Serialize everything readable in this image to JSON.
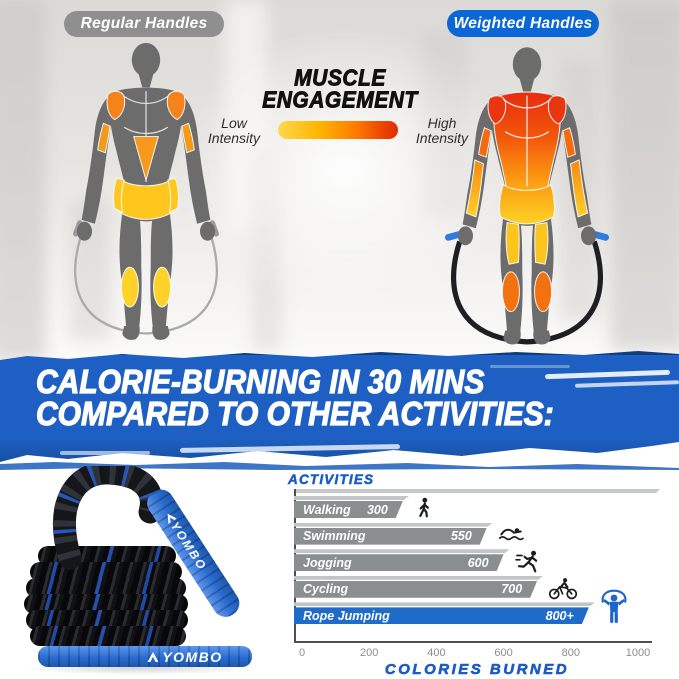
{
  "header": {
    "regular_pill_label": "Regular Handles",
    "weighted_pill_label": "Weighted Handles"
  },
  "muscle_engagement": {
    "title_line1": "MUSCLE",
    "title_line2": "ENGAGEMENT",
    "low_label_line1": "Low",
    "low_label_line2": "Intensity",
    "high_label_line1": "High",
    "high_label_line2": "Intensity"
  },
  "banner": {
    "line1": "CALORIE-BURNING IN 30 MINS",
    "line2": "COMPARED TO OTHER ACTIVITIES:"
  },
  "product": {
    "brand": "YOMBO"
  },
  "chart_data": {
    "type": "bar",
    "orientation": "horizontal",
    "title": "ACTIVITIES",
    "xlabel": "COLORIES BURNED",
    "categories": [
      "Walking",
      "Swimming",
      "Jogging",
      "Cycling",
      "Rope Jumping"
    ],
    "values": [
      300,
      550,
      600,
      700,
      800
    ],
    "value_labels": [
      "300",
      "550",
      "600",
      "700",
      "800+"
    ],
    "highlight_index": 4,
    "bar_color": "#8a8e8f",
    "highlight_color": "#1e6bc9",
    "icons": [
      "walking-icon",
      "swimming-icon",
      "jogging-icon",
      "cycling-icon",
      "rope-jumping-icon"
    ],
    "xticks": [
      0,
      200,
      400,
      600,
      800,
      1000
    ],
    "xlim": [
      0,
      1000
    ],
    "grid": false,
    "legend": false
  },
  "colors": {
    "banner_blue": "#1d5fc2",
    "pill_gray": "#8f8f8f",
    "pill_blue": "#0c67d6",
    "chart_text_blue": "#1a5cc4",
    "bar_gray": "#8a8e8f",
    "bar_highlight_blue": "#1e6bc9",
    "muscle_red": "#e82c0e",
    "muscle_orange": "#f58220",
    "muscle_yellow": "#ffc91f",
    "rope_handle_blue": "#2e7ce0",
    "intensity_gradient_start": "#ffd84e",
    "intensity_gradient_end": "#de2f00"
  }
}
